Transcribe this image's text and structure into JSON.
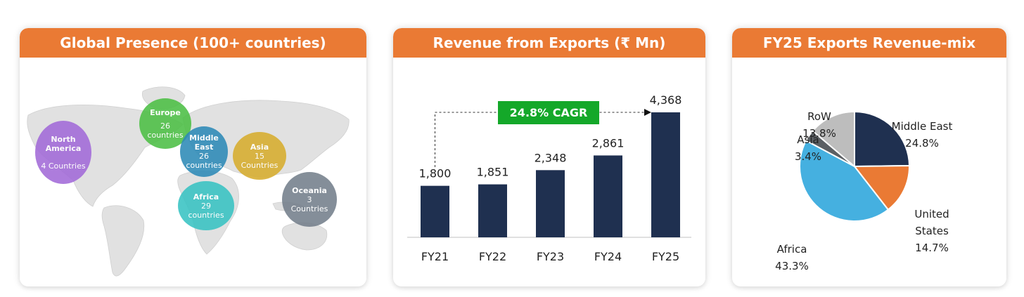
{
  "panels": {
    "presence": {
      "title": "Global Presence (100+ countries)",
      "regions": [
        {
          "name": "North\nAmerica",
          "count": "4 Countries",
          "color": "#a26ad8"
        },
        {
          "name": "Europe",
          "count": "26\ncountries",
          "color": "#4cbf45"
        },
        {
          "name": "Middle\nEast",
          "count": "26\ncountries",
          "color": "#2d8ab7"
        },
        {
          "name": "Asia",
          "count": "15\nCountries",
          "color": "#d7ad2e"
        },
        {
          "name": "Africa",
          "count": "29\ncountries",
          "color": "#38c3c3"
        },
        {
          "name": "Oceania",
          "count": "3\nCountries",
          "color": "#747f8b"
        }
      ]
    },
    "revenue": {
      "title": "Revenue from Exports (₹ Mn)"
    },
    "mix": {
      "title": "FY25 Exports Revenue-mix"
    }
  },
  "chart_data": [
    {
      "type": "bar",
      "title": "Revenue from Exports (₹ Mn)",
      "categories": [
        "FY21",
        "FY22",
        "FY23",
        "FY24",
        "FY25"
      ],
      "values": [
        1800,
        1851,
        2348,
        2861,
        4368
      ],
      "value_labels": [
        "1,800",
        "1,851",
        "2,348",
        "2,861",
        "4,368"
      ],
      "annotation": "24.8% CAGR",
      "bar_color": "#1f3050",
      "annotation_color": "#14a829",
      "ylim": [
        0,
        4368
      ]
    },
    {
      "type": "pie",
      "title": "FY25 Exports Revenue-mix",
      "slices": [
        {
          "label": "Middle East",
          "value": 24.8,
          "text": "24.8%",
          "color": "#1f3050"
        },
        {
          "label": "United States",
          "value": 14.7,
          "text": "14.7%",
          "color": "#ea7a34"
        },
        {
          "label": "Africa",
          "value": 43.3,
          "text": "43.3%",
          "color": "#45b0e0"
        },
        {
          "label": "Asia",
          "value": 3.4,
          "text": "3.4%",
          "color": "#5b5f63"
        },
        {
          "label": "RoW",
          "value": 13.8,
          "text": "13.8%",
          "color": "#bdbdbd"
        }
      ]
    }
  ]
}
